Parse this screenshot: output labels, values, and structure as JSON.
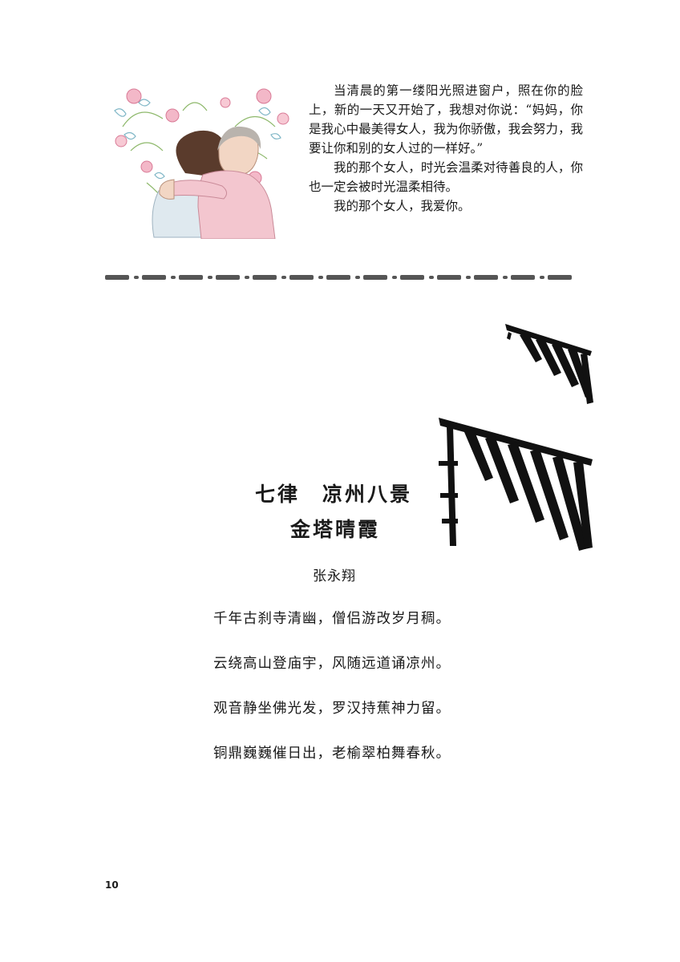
{
  "essay": {
    "paragraphs": [
      "当清晨的第一缕阳光照进窗户，照在你的脸上，新的一天又开始了，我想对你说：“妈妈，你是我心中最美得女人，我为你骄傲，我会努力，我要让你和别的女人过的一样好。”",
      "我的那个女人，时光会温柔对待善良的人，你也一定会被时光温柔相待。",
      "我的那个女人，我爱你。"
    ]
  },
  "poem": {
    "title_line1": "七律　凉州八景",
    "title_line2": "金塔晴霞",
    "author": "张永翔",
    "lines": [
      "千年古刹寺清幽，僧侣游改岁月稠。",
      "云绕高山登庙宇，风随远道诵凉州。",
      "观音静坐佛光发，罗汉持蕉神力留。",
      "铜鼎巍巍催日出，老榆翠柏舞春秋。"
    ]
  },
  "page": {
    "number": "10"
  },
  "colors": {
    "text": "#1a1a1a",
    "divider": "#555555",
    "roof": "#111111"
  }
}
